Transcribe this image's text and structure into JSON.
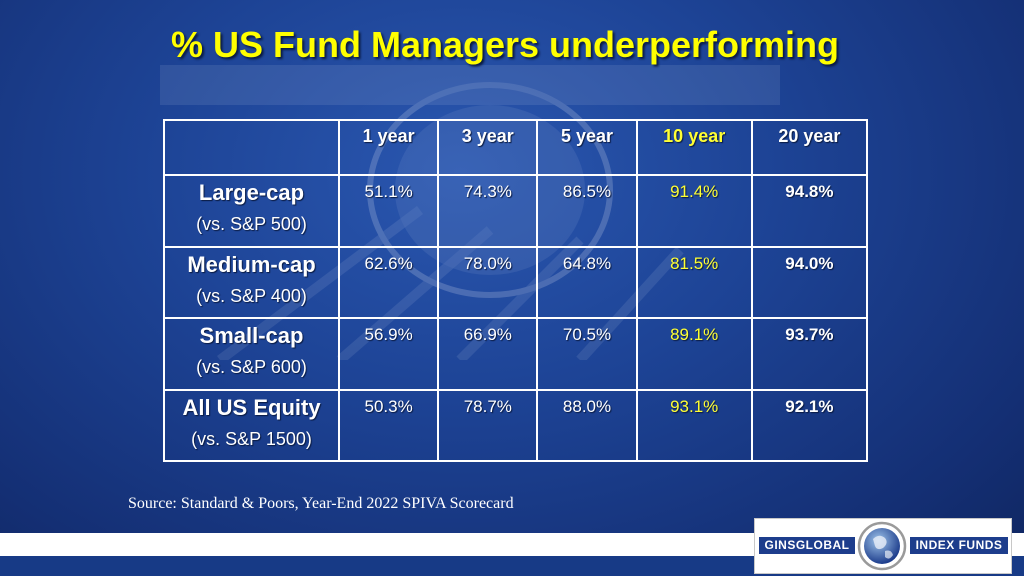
{
  "title": "% US Fund Managers underperforming",
  "table": {
    "headers": [
      "",
      "1 year",
      "3 year",
      "5 year",
      "10 year",
      "20 year"
    ],
    "rows": [
      {
        "name": "Large-cap",
        "sub": "(vs. S&P 500)",
        "values": [
          "51.1%",
          "74.3%",
          "86.5%",
          "91.4%",
          "94.8%"
        ]
      },
      {
        "name": "Medium-cap",
        "sub": "(vs. S&P 400)",
        "values": [
          "62.6%",
          "78.0%",
          "64.8%",
          "81.5%",
          "94.0%"
        ]
      },
      {
        "name": "Small-cap",
        "sub": "(vs. S&P 600)",
        "values": [
          "56.9%",
          "66.9%",
          "70.5%",
          "89.1%",
          "93.7%"
        ]
      },
      {
        "name": "All US Equity",
        "sub": "(vs. S&P 1500)",
        "values": [
          "50.3%",
          "78.7%",
          "88.0%",
          "93.1%",
          "92.1%"
        ]
      }
    ]
  },
  "source": "Source: Standard & Poors, Year-End 2022 SPIVA Scorecard",
  "logo": {
    "left_text": "GINSGLOBAL",
    "right_text": "INDEX FUNDS"
  },
  "colors": {
    "title": "#ffff00",
    "highlight_column": "#ffff33",
    "background": "#1d4395",
    "logo_band": "#1d3d8c"
  }
}
